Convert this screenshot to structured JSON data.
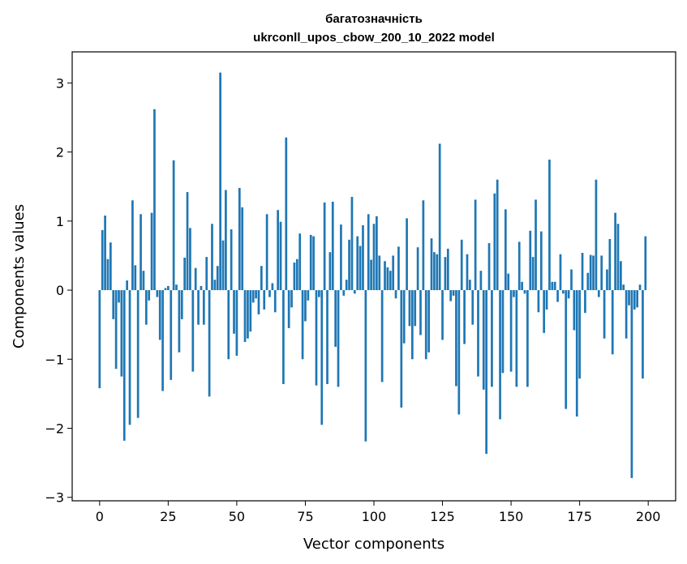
{
  "chart_data": {
    "type": "bar",
    "title": "багатозначність",
    "subtitle": "ukrconll_upos_cbow_200_10_2022 model",
    "xlabel": "Vector components",
    "ylabel": "Components values",
    "xlim": [
      -10,
      210
    ],
    "ylim": [
      -3.05,
      3.45
    ],
    "xticks": [
      0,
      25,
      50,
      75,
      100,
      125,
      150,
      175,
      200
    ],
    "yticks": [
      -3,
      -2,
      -1,
      0,
      1,
      2,
      3
    ],
    "xtick_labels": [
      "0",
      "25",
      "50",
      "75",
      "100",
      "125",
      "150",
      "175",
      "200"
    ],
    "ytick_labels": [
      "−3",
      "−2",
      "−1",
      "0",
      "1",
      "2",
      "3"
    ],
    "grid": false,
    "color": "#1f77b4",
    "x": [
      0,
      1,
      2,
      3,
      4,
      5,
      6,
      7,
      8,
      9,
      10,
      11,
      12,
      13,
      14,
      15,
      16,
      17,
      18,
      19,
      20,
      21,
      22,
      23,
      24,
      25,
      26,
      27,
      28,
      29,
      30,
      31,
      32,
      33,
      34,
      35,
      36,
      37,
      38,
      39,
      40,
      41,
      42,
      43,
      44,
      45,
      46,
      47,
      48,
      49,
      50,
      51,
      52,
      53,
      54,
      55,
      56,
      57,
      58,
      59,
      60,
      61,
      62,
      63,
      64,
      65,
      66,
      67,
      68,
      69,
      70,
      71,
      72,
      73,
      74,
      75,
      76,
      77,
      78,
      79,
      80,
      81,
      82,
      83,
      84,
      85,
      86,
      87,
      88,
      89,
      90,
      91,
      92,
      93,
      94,
      95,
      96,
      97,
      98,
      99,
      100,
      101,
      102,
      103,
      104,
      105,
      106,
      107,
      108,
      109,
      110,
      111,
      112,
      113,
      114,
      115,
      116,
      117,
      118,
      119,
      120,
      121,
      122,
      123,
      124,
      125,
      126,
      127,
      128,
      129,
      130,
      131,
      132,
      133,
      134,
      135,
      136,
      137,
      138,
      139,
      140,
      141,
      142,
      143,
      144,
      145,
      146,
      147,
      148,
      149,
      150,
      151,
      152,
      153,
      154,
      155,
      156,
      157,
      158,
      159,
      160,
      161,
      162,
      163,
      164,
      165,
      166,
      167,
      168,
      169,
      170,
      171,
      172,
      173,
      174,
      175,
      176,
      177,
      178,
      179,
      180,
      181,
      182,
      183,
      184,
      185,
      186,
      187,
      188,
      189,
      190,
      191,
      192,
      193,
      194,
      195,
      196,
      197,
      198,
      199
    ],
    "values": [
      -1.42,
      0.87,
      1.08,
      0.45,
      0.69,
      -0.42,
      -1.14,
      -0.18,
      -1.25,
      -2.18,
      0.14,
      -1.95,
      1.3,
      0.36,
      -1.85,
      1.1,
      0.28,
      -0.5,
      -0.15,
      1.12,
      2.62,
      -0.1,
      -0.72,
      -1.46,
      0.03,
      0.06,
      -1.3,
      1.88,
      0.08,
      -0.9,
      -0.42,
      0.47,
      1.42,
      0.9,
      -1.18,
      0.32,
      -0.5,
      0.06,
      -0.5,
      0.48,
      -1.54,
      0.96,
      0.15,
      0.35,
      3.15,
      0.72,
      1.45,
      -1.0,
      0.88,
      -0.63,
      -0.95,
      1.48,
      1.2,
      -0.75,
      -0.7,
      -0.6,
      -0.18,
      -0.12,
      -0.35,
      0.35,
      -0.28,
      1.1,
      -0.1,
      0.1,
      -0.32,
      1.16,
      0.99,
      -1.36,
      2.21,
      -0.55,
      -0.25,
      0.4,
      0.45,
      0.82,
      -1.0,
      -0.45,
      -0.15,
      0.8,
      0.78,
      -1.38,
      -0.1,
      -1.95,
      1.27,
      -1.36,
      0.55,
      1.28,
      -0.82,
      -1.4,
      0.95,
      -0.08,
      0.15,
      0.73,
      1.35,
      -0.05,
      0.78,
      0.64,
      0.94,
      -2.19,
      1.1,
      0.44,
      0.96,
      1.07,
      0.5,
      -1.33,
      0.42,
      0.33,
      0.28,
      0.5,
      -0.12,
      0.63,
      -1.7,
      -0.77,
      1.04,
      -0.52,
      -1.0,
      -0.52,
      0.62,
      -0.65,
      1.3,
      -1.0,
      -0.9,
      0.75,
      0.55,
      0.52,
      2.12,
      -0.72,
      0.48,
      0.6,
      -0.16,
      -0.08,
      -1.39,
      -1.8,
      0.73,
      -0.78,
      0.52,
      0.15,
      -0.5,
      1.31,
      -1.25,
      0.28,
      -1.44,
      -2.37,
      0.68,
      -1.4,
      1.4,
      1.6,
      -1.87,
      -1.2,
      1.17,
      0.24,
      -1.18,
      -0.1,
      -1.4,
      0.7,
      0.12,
      -0.05,
      -1.4,
      0.86,
      0.48,
      1.31,
      -0.32,
      0.85,
      -0.62,
      -0.28,
      1.89,
      0.12,
      0.12,
      -0.17,
      0.52,
      -0.05,
      -1.72,
      -0.12,
      0.3,
      -0.58,
      -1.83,
      -1.28,
      0.54,
      -0.33,
      0.25,
      0.51,
      0.5,
      1.6,
      -0.1,
      0.5,
      -0.7,
      0.3,
      0.74,
      -0.93,
      1.12,
      0.96,
      0.42,
      0.08,
      -0.7,
      -0.22,
      -2.72,
      -0.28,
      -0.25,
      0.08,
      -1.28,
      0.78
    ]
  }
}
